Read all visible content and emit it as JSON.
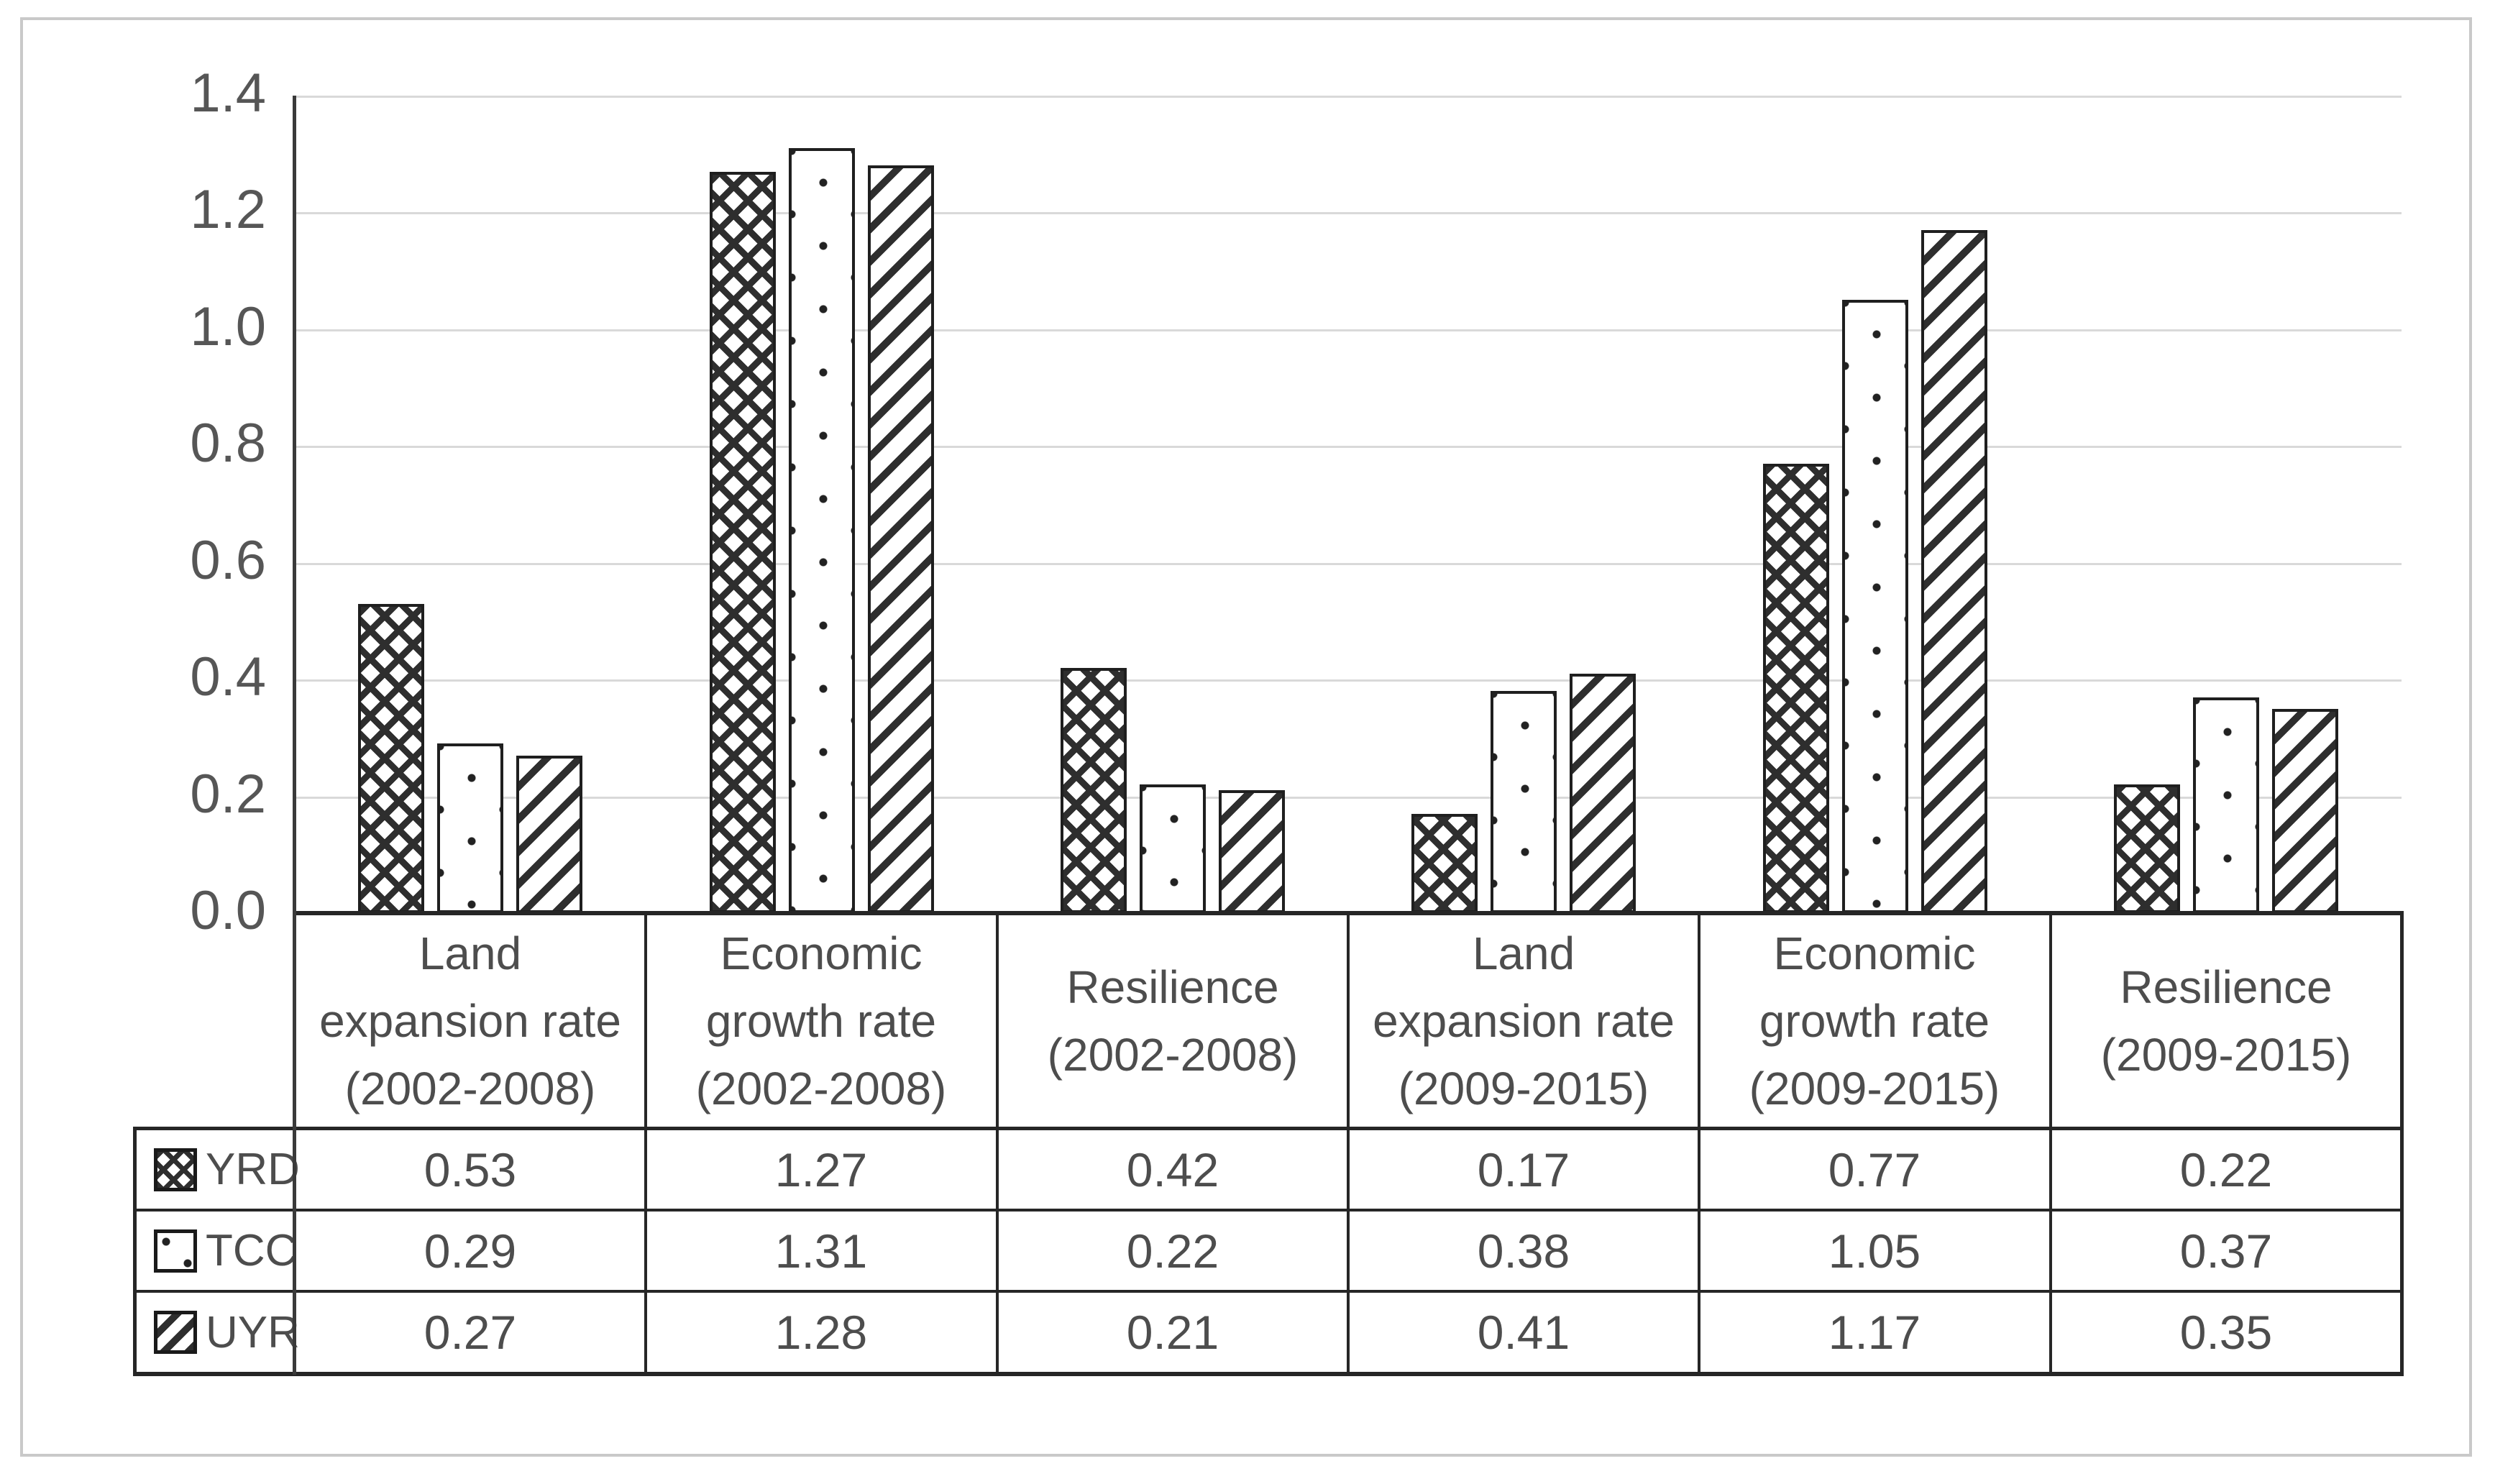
{
  "chart_data": {
    "type": "bar",
    "title": "",
    "xlabel": "",
    "ylabel": "",
    "categories": [
      "Land expansion rate (2002-2008)",
      "Economic growth rate (2002-2008)",
      "Resilience (2002-2008)",
      "Land expansion rate (2009-2015)",
      "Economic growth rate (2009-2015)",
      "Resilience (2009-2015)"
    ],
    "category_lines": [
      [
        "Land",
        "expansion rate",
        "(2002-2008)"
      ],
      [
        "Economic",
        "growth rate",
        "(2002-2008)"
      ],
      [
        "Resilience",
        "(2002-2008)"
      ],
      [
        "Land",
        "expansion rate",
        "(2009-2015)"
      ],
      [
        "Economic",
        "growth rate",
        "(2009-2015)"
      ],
      [
        "Resilience",
        "(2009-2015)"
      ]
    ],
    "series": [
      {
        "name": "YRD",
        "pattern": "crosshatch",
        "values": [
          0.53,
          1.27,
          0.42,
          0.17,
          0.77,
          0.22
        ]
      },
      {
        "name": "TCC",
        "pattern": "dots",
        "values": [
          0.29,
          1.31,
          0.22,
          0.38,
          1.05,
          0.37
        ]
      },
      {
        "name": "UYR",
        "pattern": "diagonal",
        "values": [
          0.27,
          1.28,
          0.21,
          0.41,
          1.17,
          0.35
        ]
      }
    ],
    "value_decimals": 2,
    "ylim": [
      0,
      1.4
    ],
    "ytick_step": 0.2,
    "ytick_labels": [
      "0.0",
      "0.2",
      "0.4",
      "0.6",
      "0.8",
      "1.0",
      "1.2",
      "1.4"
    ],
    "grid": "horizontal",
    "legend_position": "data-table-left-keys"
  },
  "colors": {
    "text": "#4d4d4d",
    "axis_line": "#3a3a3a",
    "gridline": "#d9d9d9",
    "table_border": "#262626",
    "pattern_dark": "#2e2e2e",
    "frame": "#c9c9c9",
    "background": "#ffffff"
  }
}
